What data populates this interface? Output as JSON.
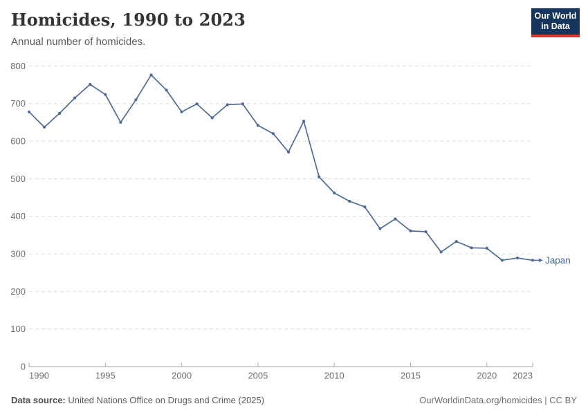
{
  "header": {
    "title": "Homicides, 1990 to 2023",
    "subtitle": "Annual number of homicides.",
    "logo": {
      "line1": "Our World",
      "line2": "in Data"
    }
  },
  "chart_data": {
    "type": "line",
    "title": "Homicides, 1990 to 2023",
    "subtitle": "Annual number of homicides.",
    "xlabel": "",
    "ylabel": "",
    "ylim": [
      0,
      800
    ],
    "yticks": [
      0,
      100,
      200,
      300,
      400,
      500,
      600,
      700,
      800
    ],
    "xticks": [
      1990,
      1995,
      2000,
      2005,
      2010,
      2015,
      2020,
      2023
    ],
    "grid": "horizontal-dashed",
    "legend_position": "end-of-line",
    "series": [
      {
        "name": "Japan",
        "color": "#4C6A9C",
        "x": [
          1990,
          1991,
          1992,
          1993,
          1994,
          1995,
          1996,
          1997,
          1998,
          1999,
          2000,
          2001,
          2002,
          2003,
          2004,
          2005,
          2006,
          2007,
          2008,
          2009,
          2010,
          2011,
          2012,
          2013,
          2014,
          2015,
          2016,
          2017,
          2018,
          2019,
          2020,
          2021,
          2022,
          2023
        ],
        "values": [
          678,
          637,
          674,
          715,
          751,
          724,
          650,
          710,
          776,
          736,
          678,
          699,
          662,
          697,
          699,
          642,
          620,
          571,
          653,
          505,
          462,
          440,
          425,
          367,
          393,
          361,
          359,
          305,
          333,
          316,
          315,
          283,
          289,
          283
        ]
      }
    ]
  },
  "footer": {
    "source_label": "Data source:",
    "source_text": " United Nations Office on Drugs and Crime (2025)",
    "right_text": "OurWorldinData.org/homicides | CC BY"
  },
  "colors": {
    "series": "#4C6A9C",
    "grid": "#dcdcdc",
    "axis": "#a3a3a3",
    "tick_label": "#6e6e6e"
  }
}
